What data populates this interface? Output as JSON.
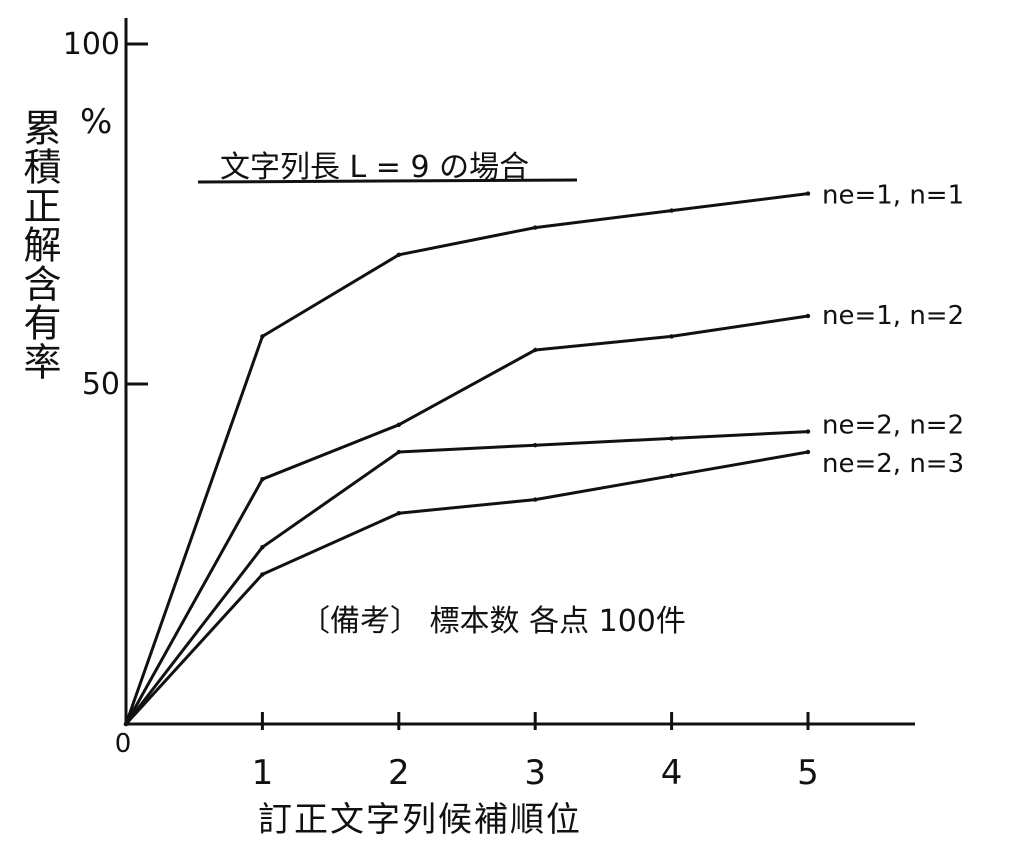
{
  "chart_data": {
    "type": "line",
    "title": "文字列長 L = 9 の場合",
    "xlabel": "訂正文字列候補順位",
    "ylabel": "累積正解含有率",
    "y_unit": "%",
    "note": "〔備考〕 標本数 各点 100件",
    "x": [
      0,
      1,
      2,
      3,
      4,
      5
    ],
    "xlim": [
      0,
      5.8
    ],
    "ylim": [
      0,
      100
    ],
    "x_ticks": [
      "0",
      "1",
      "2",
      "3",
      "4",
      "5"
    ],
    "y_ticks": [
      {
        "value": 100,
        "label": "100"
      },
      {
        "value": 50,
        "label": "50"
      }
    ],
    "grid": false,
    "legend": "inline labels at right end of each line",
    "series": [
      {
        "name": "ne=1, n=1",
        "values": [
          0,
          57,
          69,
          73,
          75.5,
          78
        ]
      },
      {
        "name": "ne=1, n=2",
        "values": [
          0,
          36,
          44,
          55,
          57,
          60
        ]
      },
      {
        "name": "ne=2, n=2",
        "values": [
          0,
          26,
          40,
          41,
          42,
          43
        ]
      },
      {
        "name": "ne=2, n=3",
        "values": [
          0,
          22,
          31,
          33,
          36.5,
          40
        ]
      }
    ],
    "colors": {
      "line": "#111111",
      "background": "#ffffff"
    }
  }
}
